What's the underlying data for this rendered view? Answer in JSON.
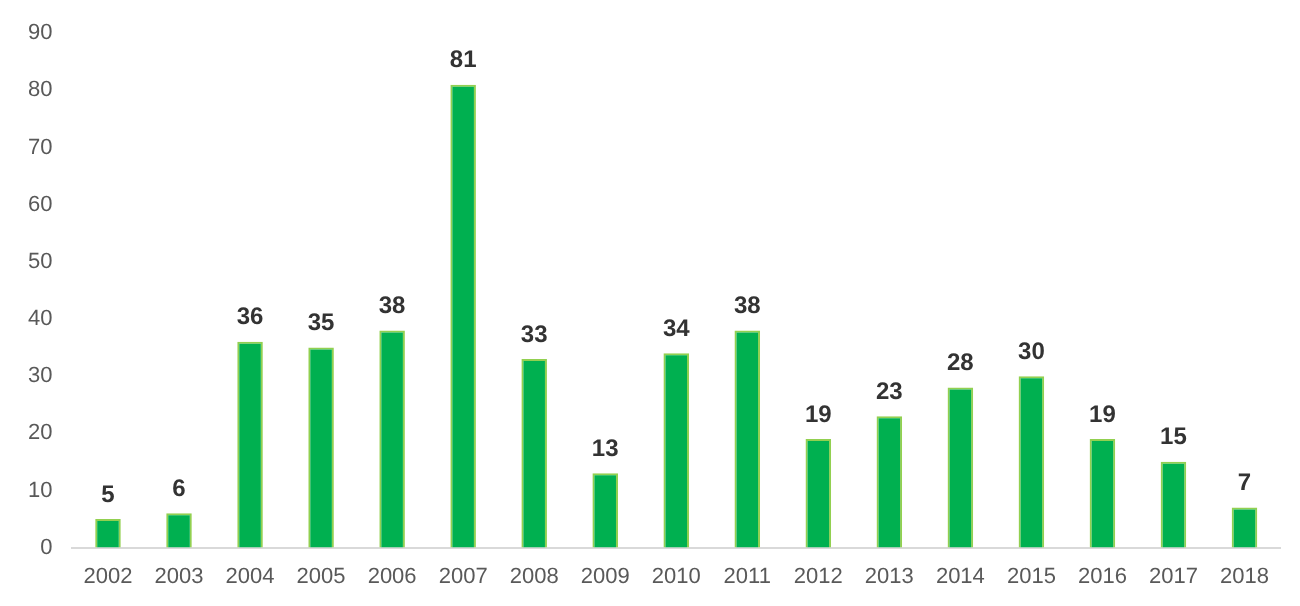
{
  "chart_data": {
    "type": "bar",
    "categories": [
      "2002",
      "2003",
      "2004",
      "2005",
      "2006",
      "2007",
      "2008",
      "2009",
      "2010",
      "2011",
      "2012",
      "2013",
      "2014",
      "2015",
      "2016",
      "2017",
      "2018"
    ],
    "values": [
      5,
      6,
      36,
      35,
      38,
      81,
      33,
      13,
      34,
      38,
      19,
      23,
      28,
      30,
      19,
      15,
      7
    ],
    "color": "#00b050",
    "ylim": [
      0,
      90
    ],
    "yticks": [
      0,
      10,
      20,
      30,
      40,
      50,
      60,
      70,
      80,
      90
    ],
    "grid": false,
    "legend": false,
    "data_labels": true
  }
}
